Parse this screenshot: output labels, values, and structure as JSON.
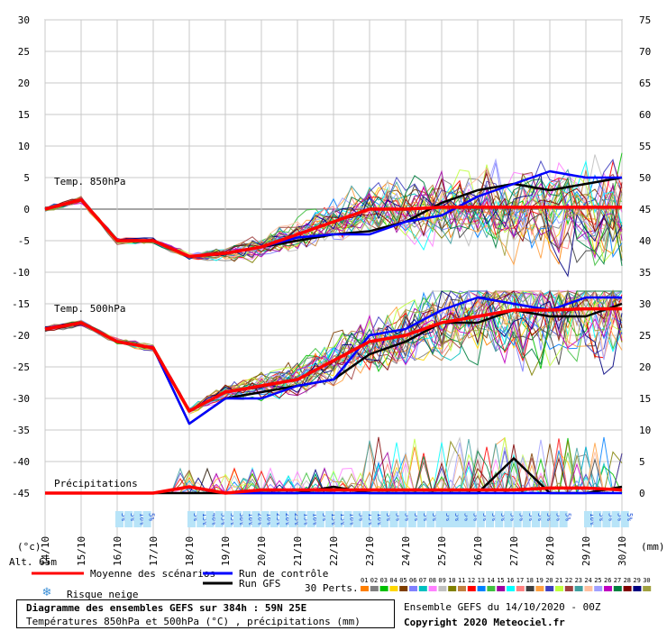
{
  "chart_data": {
    "type": "line",
    "title": "Diagramme des ensembles GEFS sur 384h : 59N 25E",
    "subtitle": "Températures 850hPa et 500hPa (°C) , précipitations (mm)",
    "left_axis": {
      "unit": "(°c)",
      "ticks": [
        30,
        25,
        20,
        15,
        10,
        5,
        0,
        -5,
        -10,
        -15,
        -20,
        -25,
        -30,
        -35,
        -40,
        -45
      ],
      "range": [
        -45,
        30
      ]
    },
    "right_axis": {
      "unit": "(mm)",
      "ticks": [
        75,
        70,
        65,
        60,
        55,
        50,
        45,
        40,
        35,
        30,
        25,
        20,
        15,
        10,
        5,
        0
      ],
      "range": [
        0,
        75
      ]
    },
    "x_dates": [
      "14/10",
      "15/10",
      "16/10",
      "17/10",
      "18/10",
      "19/10",
      "20/10",
      "21/10",
      "22/10",
      "23/10",
      "24/10",
      "25/10",
      "26/10",
      "27/10",
      "28/10",
      "29/10",
      "30/10"
    ],
    "altitude_label": "Alt. 65m",
    "panels": {
      "t850": "Temp. 850hPa",
      "t500": "Temp. 500hPa",
      "precip": "Précipitations"
    },
    "series": [
      {
        "name": "Moyenne des scénarios",
        "color": "#ff0000",
        "t850": [
          0,
          1.5,
          -5,
          -5,
          -7.5,
          -7,
          -6,
          -4,
          -2,
          0,
          0,
          0.3,
          0.3,
          0.3,
          0.3,
          0.3,
          0.3
        ],
        "t500": [
          -19,
          -18,
          -21,
          -22,
          -32,
          -29,
          -28,
          -27,
          -24,
          -21,
          -20,
          -18,
          -17,
          -16,
          -16,
          -15.8,
          -15.8
        ],
        "precip": [
          0,
          0,
          0,
          0,
          1,
          0,
          0.5,
          0.5,
          0.5,
          0.5,
          0.5,
          0.5,
          0.5,
          0.5,
          0.8,
          0.8,
          0.5
        ]
      },
      {
        "name": "Run de contrôle",
        "color": "#0000ff",
        "t850": [
          0,
          1.5,
          -5,
          -5,
          -7.5,
          -7,
          -6,
          -4.5,
          -4,
          -4,
          -2,
          -1,
          2,
          4,
          6,
          5,
          5
        ],
        "t500": [
          -19,
          -18,
          -21,
          -22,
          -34,
          -30,
          -30,
          -28,
          -27,
          -20,
          -19,
          -16,
          -14,
          -15,
          -16,
          -14,
          -14
        ],
        "precip": [
          0,
          0,
          0,
          0,
          1,
          0,
          0,
          0,
          0,
          0,
          0,
          0,
          0,
          0,
          0,
          0,
          0
        ]
      },
      {
        "name": "Run GFS",
        "color": "#000000",
        "t850": [
          0,
          1.5,
          -5,
          -5,
          -7.5,
          -7,
          -6,
          -5,
          -4,
          -3.5,
          -2,
          1,
          3,
          4,
          3,
          4,
          5
        ],
        "t500": [
          -19,
          -18,
          -21,
          -22,
          -34,
          -30,
          -29,
          -28,
          -27,
          -23,
          -21,
          -18,
          -18,
          -16,
          -17,
          -17,
          -15
        ],
        "precip": [
          0,
          0,
          0,
          0,
          0,
          0,
          0,
          0,
          1,
          0,
          0,
          0,
          0,
          5.5,
          0,
          0,
          1
        ]
      }
    ],
    "perturbation_count_label": "30 Perts.",
    "perturbation_ids": [
      "01",
      "02",
      "03",
      "04",
      "05",
      "06",
      "07",
      "08",
      "09",
      "10",
      "11",
      "12",
      "13",
      "14",
      "15",
      "16",
      "17",
      "18",
      "19",
      "20",
      "21",
      "22",
      "23",
      "24",
      "25",
      "26",
      "27",
      "28",
      "29",
      "30"
    ],
    "perturbation_colors": [
      "#ff7f00",
      "#7f7f7f",
      "#00c000",
      "#ffd700",
      "#7f3f00",
      "#8080ff",
      "#00c0c0",
      "#ff80ff",
      "#c0c0c0",
      "#808000",
      "#c08040",
      "#ff0000",
      "#0080ff",
      "#40c040",
      "#a000a0",
      "#00ffff",
      "#ff8080",
      "#404040",
      "#ffa040",
      "#4040c0",
      "#c0ff40",
      "#a04040",
      "#40a0a0",
      "#ffc0a0",
      "#a0a0ff",
      "#c000c0",
      "#008040",
      "#800000",
      "#000080",
      "#a0a040"
    ],
    "snow_risk_label": "Risque neige",
    "snow_risk_groups": [
      {
        "start": "16/10",
        "values": [
          "5%",
          "5%",
          "10%",
          "5%"
        ]
      },
      {
        "start": "18/10",
        "values": [
          "5%",
          "15%",
          "40%",
          "55%",
          "35%",
          "30%",
          "10%",
          "20%",
          "10%",
          "25%",
          "20%",
          "25%",
          "15%",
          "10%",
          "5%",
          "15%",
          "15%",
          "10%",
          "5%",
          "15%",
          "10%",
          "5%",
          "5%",
          "5%",
          "5%",
          "5%",
          "5%",
          "5%",
          "5%",
          "5%",
          "5%"
        ]
      },
      {
        "start": "25/10",
        "values": [
          "5%",
          "5%",
          "5%",
          "5%",
          "5%",
          "5%",
          "5%",
          "5%",
          "5%",
          "5%",
          "5%",
          "5%",
          "5%",
          "5%"
        ]
      },
      {
        "start": "29/10",
        "values": [
          "10%",
          "5%",
          "5%",
          "5%",
          "5%"
        ]
      }
    ],
    "grid": true
  },
  "footer": {
    "title": "Diagramme des ensembles GEFS sur 384h : 59N 25E",
    "subtitle": "Températures 850hPa et 500hPa (°C) , précipitations (mm)",
    "run_info": "Ensemble GEFS du 14/10/2020 - 00Z",
    "copyright": "Copyright 2020 Meteociel.fr"
  }
}
